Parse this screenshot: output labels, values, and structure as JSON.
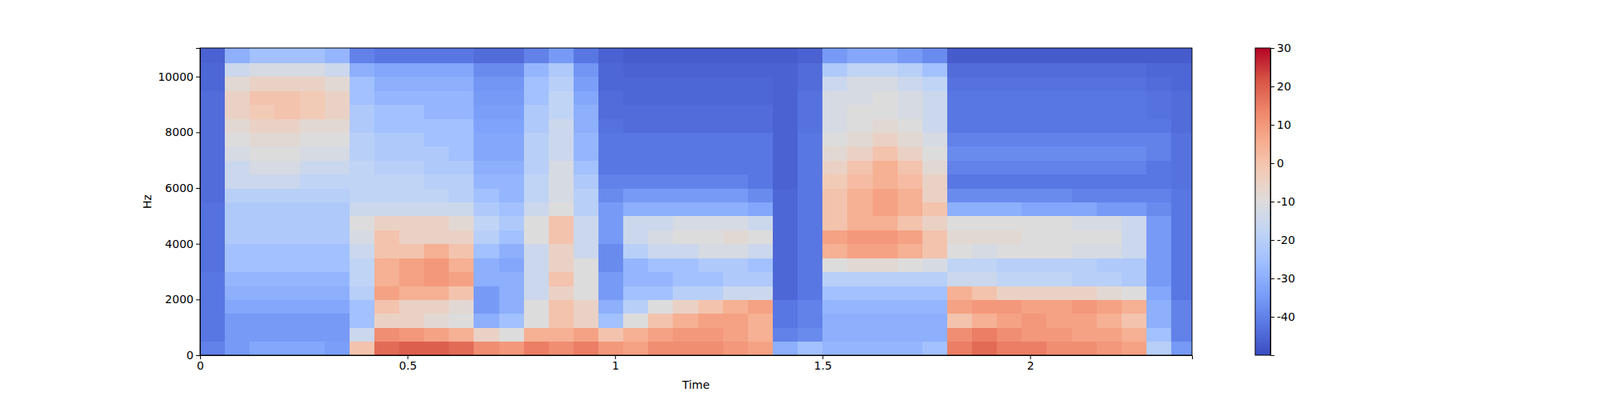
{
  "chart_data": {
    "type": "heatmap",
    "xlabel": "Time",
    "ylabel": "Hz",
    "xlim": [
      0,
      2.39
    ],
    "ylim": [
      0,
      11025
    ],
    "xticks": [
      0,
      0.5,
      1,
      1.5,
      2
    ],
    "yticks": [
      0,
      2000,
      4000,
      6000,
      8000,
      10000
    ],
    "x": [
      0,
      0.06,
      0.12,
      0.18,
      0.24,
      0.3,
      0.36,
      0.42,
      0.48,
      0.54,
      0.6,
      0.66,
      0.72,
      0.78,
      0.84,
      0.9,
      0.96,
      1.02,
      1.08,
      1.14,
      1.2,
      1.26,
      1.32,
      1.38,
      1.44,
      1.5,
      1.56,
      1.62,
      1.68,
      1.74,
      1.8,
      1.86,
      1.92,
      1.98,
      2.04,
      2.1,
      2.16,
      2.22,
      2.28,
      2.34
    ],
    "y": [
      0,
      500,
      1000,
      1500,
      2000,
      2500,
      3000,
      3500,
      4000,
      4500,
      5000,
      5500,
      6000,
      6500,
      7000,
      7500,
      8000,
      8500,
      9000,
      9500,
      10000,
      10500
    ],
    "z": [
      [
        -40,
        -35,
        -32,
        -32,
        -32,
        -34,
        0,
        18,
        20,
        20,
        18,
        12,
        10,
        15,
        12,
        15,
        10,
        8,
        12,
        12,
        12,
        10,
        8,
        -30,
        -25,
        -28,
        -28,
        -28,
        -28,
        -25,
        15,
        18,
        15,
        15,
        12,
        12,
        10,
        8,
        -20,
        -35
      ],
      [
        -42,
        -35,
        -35,
        -35,
        -35,
        -35,
        -15,
        12,
        10,
        8,
        5,
        -5,
        -10,
        5,
        5,
        8,
        0,
        5,
        8,
        10,
        10,
        8,
        5,
        -40,
        -38,
        -30,
        -30,
        -30,
        -30,
        -30,
        12,
        15,
        12,
        10,
        10,
        8,
        8,
        5,
        -25,
        -40
      ],
      [
        -42,
        -35,
        -35,
        -35,
        -35,
        -35,
        -25,
        -5,
        -5,
        -8,
        -10,
        -30,
        -25,
        -10,
        0,
        -5,
        -25,
        -10,
        0,
        5,
        8,
        8,
        5,
        -42,
        -40,
        -30,
        -30,
        -30,
        -30,
        -30,
        0,
        5,
        8,
        10,
        8,
        8,
        5,
        0,
        -30,
        -40
      ],
      [
        -42,
        -32,
        -32,
        -32,
        -32,
        -32,
        -25,
        0,
        -5,
        -5,
        -8,
        -35,
        -30,
        -10,
        0,
        -5,
        -30,
        -20,
        -10,
        -5,
        0,
        5,
        8,
        -42,
        -40,
        -28,
        -28,
        -28,
        -28,
        -28,
        8,
        10,
        10,
        8,
        8,
        10,
        8,
        5,
        -30,
        -40
      ],
      [
        -42,
        -30,
        -30,
        -30,
        -30,
        -30,
        -20,
        8,
        5,
        5,
        0,
        -35,
        -30,
        -15,
        -5,
        -10,
        -35,
        -25,
        -25,
        -20,
        -20,
        -15,
        -15,
        -45,
        -42,
        -25,
        -25,
        -25,
        -25,
        -25,
        5,
        0,
        -5,
        -5,
        -5,
        -5,
        -8,
        -10,
        -32,
        -42
      ],
      [
        -42,
        -28,
        -28,
        -28,
        -28,
        -28,
        -18,
        5,
        8,
        10,
        8,
        -30,
        -30,
        -15,
        0,
        -10,
        -35,
        -28,
        -28,
        -25,
        -25,
        -22,
        -22,
        -45,
        -42,
        -20,
        -20,
        -20,
        -20,
        -20,
        -15,
        -15,
        -18,
        -18,
        -18,
        -20,
        -20,
        -22,
        -35,
        -42
      ],
      [
        -43,
        -25,
        -25,
        -25,
        -25,
        -25,
        -18,
        5,
        8,
        10,
        5,
        -30,
        -32,
        -15,
        -5,
        -10,
        -38,
        -28,
        -25,
        -25,
        -22,
        -22,
        -25,
        -45,
        -42,
        -10,
        -8,
        -8,
        -10,
        -12,
        -18,
        -18,
        -20,
        -20,
        -20,
        -20,
        -22,
        -22,
        -35,
        -42
      ],
      [
        -43,
        -25,
        -25,
        -25,
        -25,
        -25,
        -15,
        0,
        0,
        5,
        0,
        -25,
        -30,
        -15,
        -5,
        -15,
        -38,
        -20,
        -15,
        -15,
        -12,
        -12,
        -15,
        -45,
        -42,
        5,
        8,
        8,
        5,
        0,
        -10,
        -12,
        -10,
        -10,
        -10,
        -12,
        -12,
        -15,
        -35,
        -42
      ],
      [
        -43,
        -22,
        -22,
        -22,
        -22,
        -22,
        -12,
        0,
        -5,
        -5,
        -5,
        -20,
        -25,
        -10,
        0,
        -15,
        -35,
        -15,
        -12,
        -10,
        -10,
        -8,
        -10,
        -45,
        -42,
        8,
        10,
        10,
        8,
        0,
        -8,
        -8,
        -8,
        -10,
        -10,
        -10,
        -10,
        -15,
        -35,
        -42
      ],
      [
        -43,
        -22,
        -22,
        -22,
        -22,
        -22,
        -10,
        -5,
        -5,
        -5,
        -8,
        -18,
        -22,
        -10,
        0,
        -15,
        -35,
        -15,
        -15,
        -12,
        -12,
        -12,
        -15,
        -45,
        -42,
        0,
        5,
        5,
        0,
        -5,
        -10,
        -10,
        -10,
        -10,
        -10,
        -12,
        -12,
        -15,
        -35,
        -42
      ],
      [
        -43,
        -22,
        -22,
        -22,
        -22,
        -22,
        -15,
        -15,
        -15,
        -15,
        -15,
        -22,
        -25,
        -15,
        -10,
        -20,
        -35,
        -30,
        -30,
        -30,
        -30,
        -30,
        -32,
        -45,
        -42,
        0,
        5,
        8,
        5,
        0,
        -30,
        -30,
        -30,
        -32,
        -32,
        -32,
        -35,
        -35,
        -38,
        -42
      ],
      [
        -44,
        -20,
        -20,
        -20,
        -20,
        -20,
        -18,
        -18,
        -18,
        -18,
        -20,
        -25,
        -28,
        -18,
        -12,
        -20,
        -38,
        -35,
        -35,
        -35,
        -35,
        -35,
        -38,
        -45,
        -42,
        0,
        5,
        8,
        5,
        -5,
        -38,
        -38,
        -38,
        -38,
        -38,
        -40,
        -40,
        -40,
        -40,
        -42
      ],
      [
        -44,
        -15,
        -15,
        -15,
        -18,
        -18,
        -18,
        -18,
        -18,
        -20,
        -20,
        -28,
        -28,
        -18,
        -12,
        -22,
        -40,
        -40,
        -40,
        -40,
        -40,
        -40,
        -42,
        -46,
        -42,
        -2,
        2,
        5,
        2,
        -5,
        -42,
        -42,
        -42,
        -42,
        -42,
        -42,
        -42,
        -42,
        -42,
        -43
      ],
      [
        -44,
        -15,
        -12,
        -12,
        -15,
        -15,
        -18,
        -20,
        -20,
        -22,
        -22,
        -30,
        -30,
        -20,
        -12,
        -25,
        -42,
        -42,
        -42,
        -42,
        -42,
        -42,
        -42,
        -46,
        -42,
        -5,
        0,
        5,
        0,
        -8,
        -40,
        -40,
        -40,
        -40,
        -40,
        -40,
        -40,
        -40,
        -42,
        -43
      ],
      [
        -44,
        -12,
        -10,
        -10,
        -12,
        -12,
        -20,
        -22,
        -22,
        -22,
        -25,
        -32,
        -32,
        -20,
        -15,
        -28,
        -42,
        -42,
        -42,
        -42,
        -42,
        -42,
        -42,
        -46,
        -42,
        -8,
        -5,
        0,
        -5,
        -10,
        -38,
        -38,
        -38,
        -38,
        -38,
        -38,
        -38,
        -38,
        -40,
        -43
      ],
      [
        -44,
        -10,
        -8,
        -8,
        -10,
        -10,
        -20,
        -22,
        -22,
        -25,
        -25,
        -32,
        -32,
        -20,
        -15,
        -28,
        -42,
        -42,
        -42,
        -42,
        -42,
        -42,
        -42,
        -46,
        -42,
        -10,
        -8,
        -5,
        -8,
        -12,
        -40,
        -40,
        -40,
        -40,
        -40,
        -40,
        -40,
        -40,
        -40,
        -43
      ],
      [
        -44,
        -8,
        -5,
        -5,
        -8,
        -8,
        -22,
        -25,
        -25,
        -25,
        -25,
        -33,
        -33,
        -22,
        -15,
        -30,
        -43,
        -44,
        -44,
        -44,
        -44,
        -44,
        -44,
        -46,
        -43,
        -12,
        -10,
        -8,
        -10,
        -15,
        -42,
        -42,
        -42,
        -42,
        -42,
        -42,
        -42,
        -42,
        -42,
        -44
      ],
      [
        -44,
        -5,
        -2,
        0,
        -2,
        -5,
        -22,
        -25,
        -25,
        -28,
        -28,
        -34,
        -34,
        -22,
        -18,
        -30,
        -44,
        -44,
        -44,
        -44,
        -44,
        -44,
        -44,
        -46,
        -43,
        -12,
        -10,
        -10,
        -12,
        -15,
        -42,
        -42,
        -42,
        -42,
        -42,
        -42,
        -42,
        -42,
        -43,
        -44
      ],
      [
        -44,
        -5,
        0,
        0,
        -2,
        -5,
        -25,
        -28,
        -28,
        -28,
        -28,
        -35,
        -35,
        -25,
        -18,
        -32,
        -44,
        -45,
        -45,
        -45,
        -45,
        -45,
        -45,
        -46,
        -43,
        -12,
        -12,
        -10,
        -12,
        -15,
        -42,
        -42,
        -42,
        -42,
        -42,
        -42,
        -42,
        -42,
        -43,
        -44
      ],
      [
        -45,
        -8,
        -5,
        -5,
        -5,
        -8,
        -25,
        -30,
        -30,
        -30,
        -30,
        -36,
        -36,
        -25,
        -20,
        -34,
        -45,
        -45,
        -45,
        -45,
        -45,
        -45,
        -45,
        -46,
        -44,
        -15,
        -12,
        -12,
        -15,
        -18,
        -43,
        -43,
        -43,
        -43,
        -43,
        -43,
        -43,
        -43,
        -44,
        -45
      ],
      [
        -45,
        -15,
        -12,
        -12,
        -12,
        -15,
        -30,
        -32,
        -32,
        -32,
        -32,
        -38,
        -38,
        -28,
        -22,
        -36,
        -45,
        -46,
        -46,
        -46,
        -46,
        -46,
        -46,
        -46,
        -44,
        -22,
        -18,
        -18,
        -20,
        -25,
        -44,
        -44,
        -44,
        -44,
        -44,
        -44,
        -44,
        -44,
        -45,
        -45
      ],
      [
        -46,
        -30,
        -25,
        -25,
        -25,
        -28,
        -40,
        -42,
        -42,
        -42,
        -42,
        -44,
        -44,
        -40,
        -35,
        -42,
        -46,
        -47,
        -47,
        -47,
        -47,
        -47,
        -47,
        -47,
        -46,
        -35,
        -32,
        -32,
        -35,
        -38,
        -47,
        -47,
        -47,
        -47,
        -47,
        -47,
        -47,
        -47,
        -47,
        -47
      ]
    ],
    "colorbar": {
      "range": [
        -50,
        30
      ],
      "ticks": [
        -40,
        -30,
        -20,
        -10,
        0,
        10,
        20,
        30
      ]
    }
  }
}
